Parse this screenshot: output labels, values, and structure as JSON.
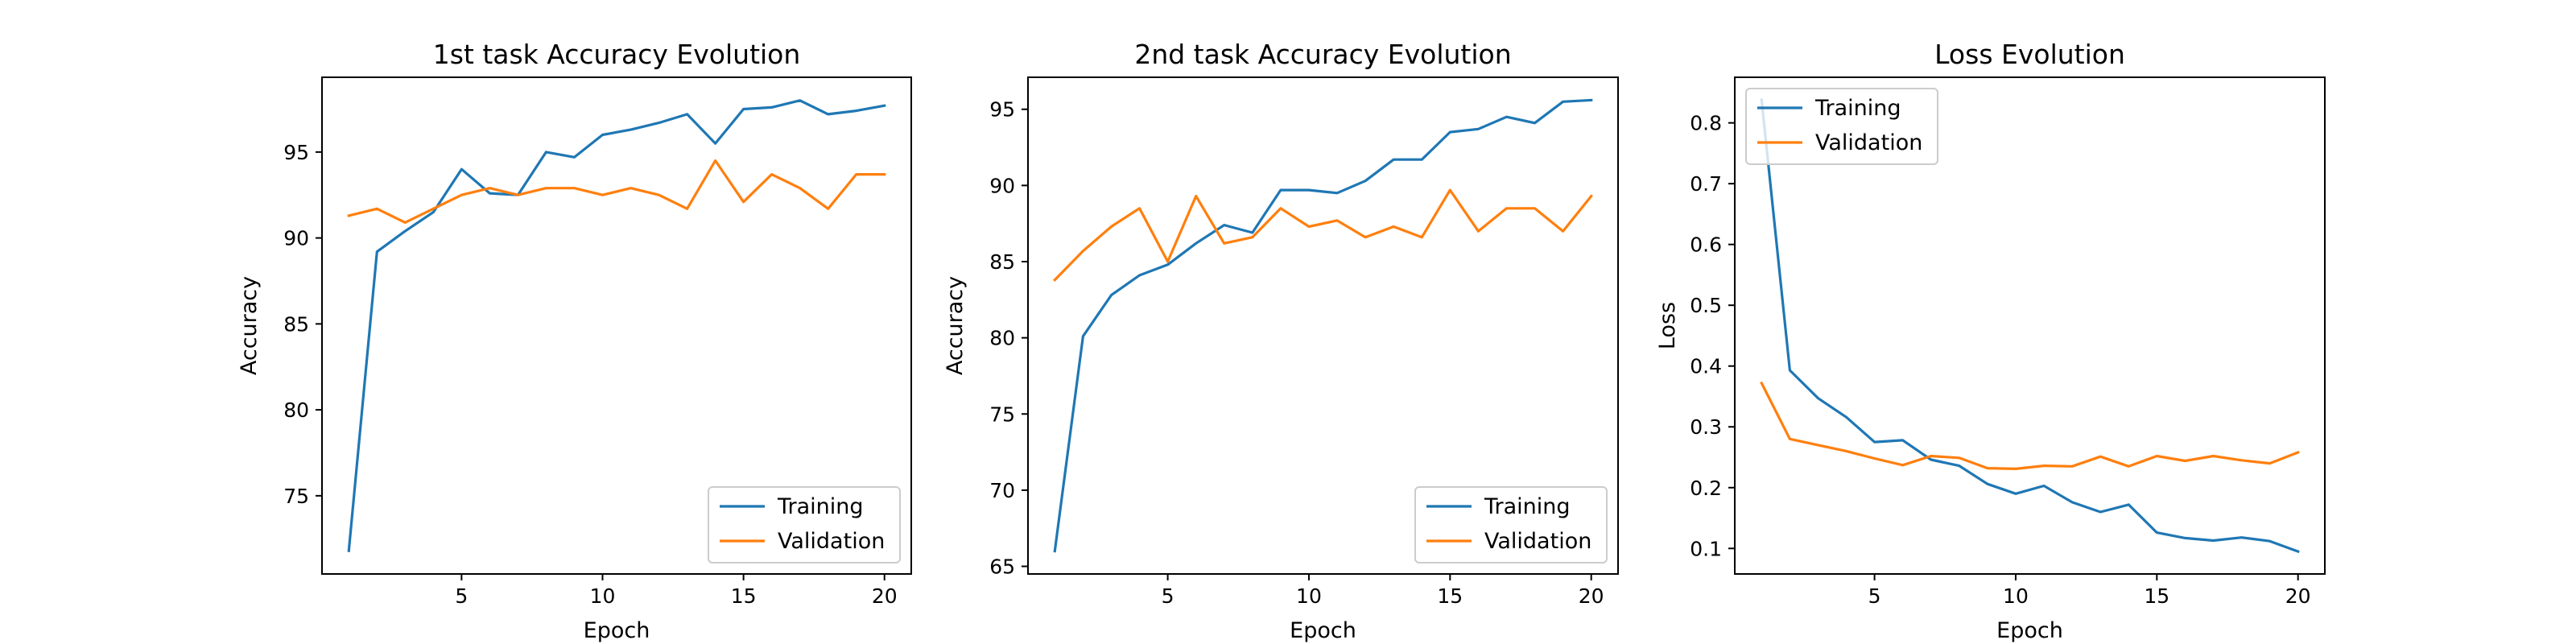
{
  "figure": {
    "colors": {
      "training": "#1f77b4",
      "validation": "#ff7f0e"
    }
  },
  "chart_data": [
    {
      "type": "line",
      "title": "1st task Accuracy Evolution",
      "xlabel": "Epoch",
      "ylabel": "Accuracy",
      "x": [
        1,
        2,
        3,
        4,
        5,
        6,
        7,
        8,
        9,
        10,
        11,
        12,
        13,
        14,
        15,
        16,
        17,
        18,
        19,
        20
      ],
      "xticks": [
        5,
        10,
        15,
        20
      ],
      "yticks": [
        75,
        80,
        85,
        90,
        95
      ],
      "xlim": [
        0.05,
        20.95
      ],
      "ylim": [
        70.45,
        99.35
      ],
      "grid": false,
      "legend_position": "lower-right",
      "series": [
        {
          "name": "Training",
          "color": "#1f77b4",
          "values": [
            71.8,
            89.2,
            90.4,
            91.5,
            94.0,
            92.6,
            92.5,
            95.0,
            94.7,
            96.0,
            96.3,
            96.7,
            97.2,
            95.5,
            97.5,
            97.6,
            98.0,
            97.2,
            97.4,
            97.7
          ]
        },
        {
          "name": "Validation",
          "color": "#ff7f0e",
          "values": [
            91.3,
            91.7,
            90.9,
            91.7,
            92.5,
            92.9,
            92.5,
            92.9,
            92.9,
            92.5,
            92.9,
            92.5,
            91.7,
            94.5,
            92.1,
            93.7,
            92.9,
            91.7,
            93.7,
            93.7
          ]
        }
      ]
    },
    {
      "type": "line",
      "title": "2nd task Accuracy Evolution",
      "xlabel": "Epoch",
      "ylabel": "Accuracy",
      "x": [
        1,
        2,
        3,
        4,
        5,
        6,
        7,
        8,
        9,
        10,
        11,
        12,
        13,
        14,
        15,
        16,
        17,
        18,
        19,
        20
      ],
      "xticks": [
        5,
        10,
        15,
        20
      ],
      "yticks": [
        65,
        70,
        75,
        80,
        85,
        90,
        95
      ],
      "xlim": [
        0.05,
        20.95
      ],
      "ylim": [
        64.5,
        97.1
      ],
      "grid": false,
      "legend_position": "lower-right",
      "series": [
        {
          "name": "Training",
          "color": "#1f77b4",
          "values": [
            66.0,
            80.1,
            82.8,
            84.1,
            84.8,
            86.2,
            87.4,
            86.9,
            89.7,
            89.7,
            89.5,
            90.3,
            91.7,
            91.7,
            93.5,
            93.7,
            94.5,
            94.1,
            95.5,
            95.6
          ]
        },
        {
          "name": "Validation",
          "color": "#ff7f0e",
          "values": [
            83.8,
            85.7,
            87.3,
            88.5,
            85.0,
            89.3,
            86.2,
            86.6,
            88.5,
            87.3,
            87.7,
            86.6,
            87.3,
            86.6,
            89.7,
            87.0,
            88.5,
            88.5,
            87.0,
            89.3
          ]
        }
      ]
    },
    {
      "type": "line",
      "title": "Loss Evolution",
      "xlabel": "Epoch",
      "ylabel": "Loss",
      "x": [
        1,
        2,
        3,
        4,
        5,
        6,
        7,
        8,
        9,
        10,
        11,
        12,
        13,
        14,
        15,
        16,
        17,
        18,
        19,
        20
      ],
      "xticks": [
        5,
        10,
        15,
        20
      ],
      "yticks": [
        0.1,
        0.2,
        0.3,
        0.4,
        0.5,
        0.6,
        0.7,
        0.8
      ],
      "xlim": [
        0.05,
        20.95
      ],
      "ylim": [
        0.058,
        0.875
      ],
      "grid": false,
      "legend_position": "upper-left",
      "series": [
        {
          "name": "Training",
          "color": "#1f77b4",
          "values": [
            0.838,
            0.393,
            0.347,
            0.316,
            0.275,
            0.278,
            0.246,
            0.236,
            0.206,
            0.19,
            0.203,
            0.176,
            0.16,
            0.172,
            0.126,
            0.117,
            0.113,
            0.118,
            0.112,
            0.095
          ]
        },
        {
          "name": "Validation",
          "color": "#ff7f0e",
          "values": [
            0.372,
            0.28,
            0.27,
            0.26,
            0.248,
            0.237,
            0.252,
            0.249,
            0.232,
            0.231,
            0.236,
            0.235,
            0.251,
            0.235,
            0.252,
            0.244,
            0.252,
            0.245,
            0.24,
            0.258
          ]
        }
      ]
    }
  ]
}
